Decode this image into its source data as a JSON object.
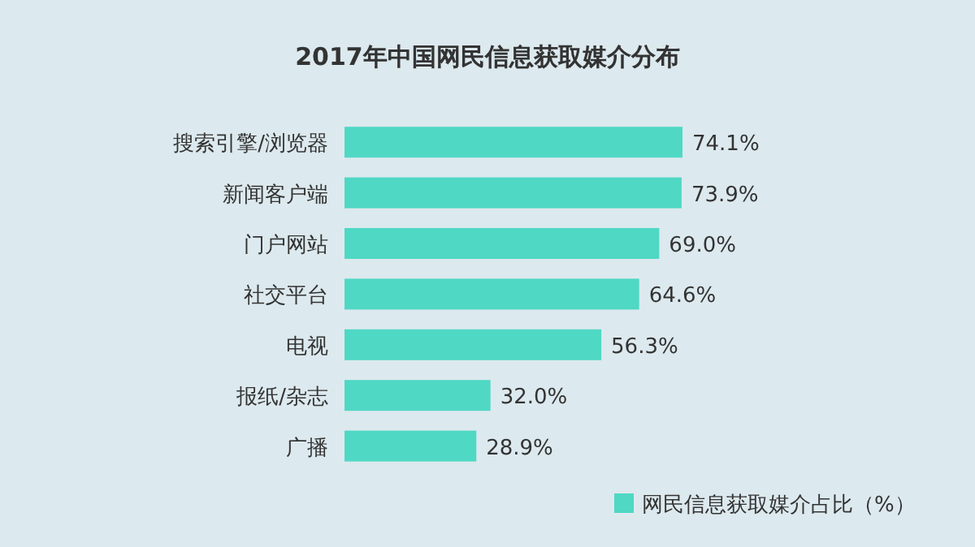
{
  "chart_data": {
    "type": "bar",
    "orientation": "horizontal",
    "title": "2017年中国网民信息获取媒介分布",
    "categories": [
      "搜索引擎/浏览器",
      "新闻客户端",
      "门户网站",
      "社交平台",
      "电视",
      "报纸/杂志",
      "广播"
    ],
    "series": [
      {
        "name": "网民信息获取媒介占比（%）",
        "color": "#4fd8c4",
        "values": [
          74.1,
          73.9,
          69.0,
          64.6,
          56.3,
          32.0,
          28.9
        ],
        "value_labels": [
          "74.1%",
          "73.9%",
          "69.0%",
          "64.6%",
          "56.3%",
          "32.0%",
          "28.9%"
        ]
      }
    ],
    "legend": "bottom right"
  }
}
